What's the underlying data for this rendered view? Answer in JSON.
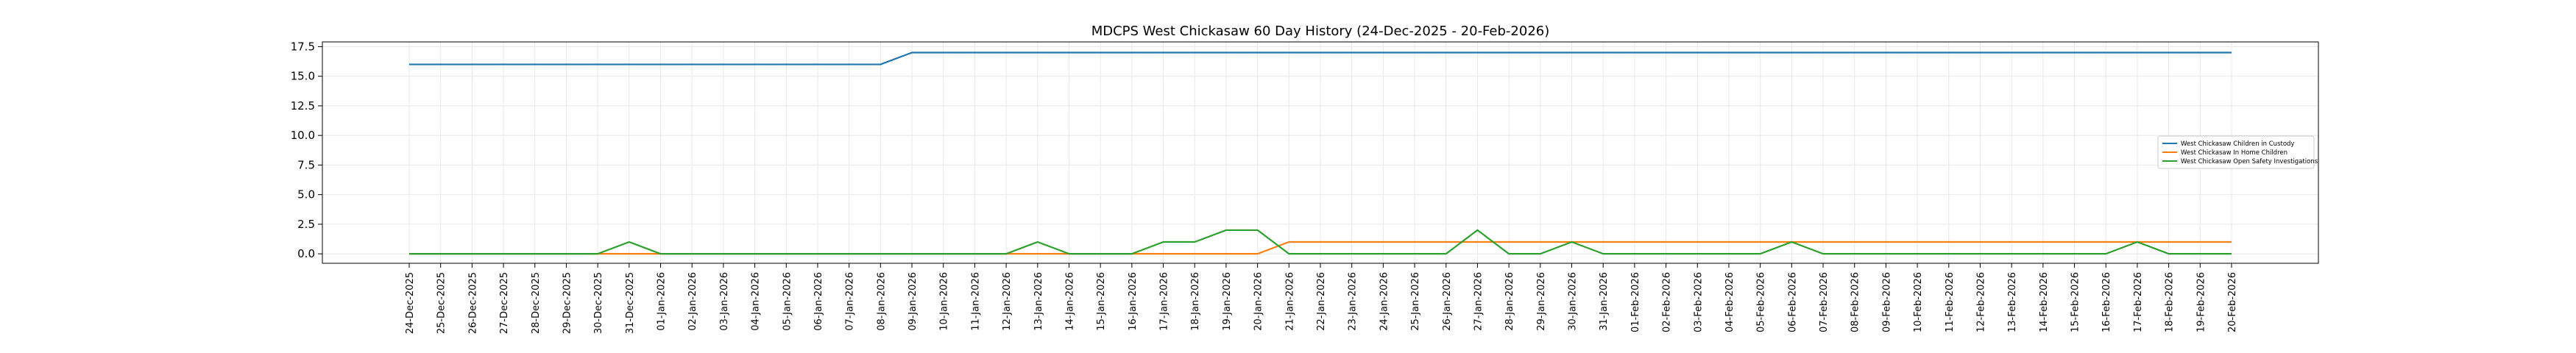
{
  "chart_data": {
    "type": "line",
    "title": "MDCPS West Chickasaw 60 Day History (24-Dec-2025 - 20-Feb-2026)",
    "xlabel": "",
    "ylabel": "",
    "ylim": [
      -0.8,
      17.9
    ],
    "yticks": [
      0.0,
      2.5,
      5.0,
      7.5,
      10.0,
      12.5,
      15.0,
      17.5
    ],
    "ytick_labels": [
      "0.0",
      "2.5",
      "5.0",
      "7.5",
      "10.0",
      "12.5",
      "15.0",
      "17.5"
    ],
    "grid": true,
    "legend_position": "right",
    "categories": [
      "24-Dec-2025",
      "25-Dec-2025",
      "26-Dec-2025",
      "27-Dec-2025",
      "28-Dec-2025",
      "29-Dec-2025",
      "30-Dec-2025",
      "31-Dec-2025",
      "01-Jan-2026",
      "02-Jan-2026",
      "03-Jan-2026",
      "04-Jan-2026",
      "05-Jan-2026",
      "06-Jan-2026",
      "07-Jan-2026",
      "08-Jan-2026",
      "09-Jan-2026",
      "10-Jan-2026",
      "11-Jan-2026",
      "12-Jan-2026",
      "13-Jan-2026",
      "14-Jan-2026",
      "15-Jan-2026",
      "16-Jan-2026",
      "17-Jan-2026",
      "18-Jan-2026",
      "19-Jan-2026",
      "20-Jan-2026",
      "21-Jan-2026",
      "22-Jan-2026",
      "23-Jan-2026",
      "24-Jan-2026",
      "25-Jan-2026",
      "26-Jan-2026",
      "27-Jan-2026",
      "28-Jan-2026",
      "29-Jan-2026",
      "30-Jan-2026",
      "31-Jan-2026",
      "01-Feb-2026",
      "02-Feb-2026",
      "03-Feb-2026",
      "04-Feb-2026",
      "05-Feb-2026",
      "06-Feb-2026",
      "07-Feb-2026",
      "08-Feb-2026",
      "09-Feb-2026",
      "10-Feb-2026",
      "11-Feb-2026",
      "12-Feb-2026",
      "13-Feb-2026",
      "14-Feb-2026",
      "15-Feb-2026",
      "16-Feb-2026",
      "17-Feb-2026",
      "18-Feb-2026",
      "19-Feb-2026",
      "20-Feb-2026"
    ],
    "series": [
      {
        "name": "West Chickasaw Children in Custody",
        "color": "#1f77b4",
        "values": [
          16,
          16,
          16,
          16,
          16,
          16,
          16,
          16,
          16,
          16,
          16,
          16,
          16,
          16,
          16,
          16,
          17,
          17,
          17,
          17,
          17,
          17,
          17,
          17,
          17,
          17,
          17,
          17,
          17,
          17,
          17,
          17,
          17,
          17,
          17,
          17,
          17,
          17,
          17,
          17,
          17,
          17,
          17,
          17,
          17,
          17,
          17,
          17,
          17,
          17,
          17,
          17,
          17,
          17,
          17,
          17,
          17,
          17,
          17
        ]
      },
      {
        "name": "West Chickasaw In Home Children",
        "color": "#ff7f0e",
        "values": [
          0,
          0,
          0,
          0,
          0,
          0,
          0,
          0,
          0,
          0,
          0,
          0,
          0,
          0,
          0,
          0,
          0,
          0,
          0,
          0,
          0,
          0,
          0,
          0,
          0,
          0,
          0,
          0,
          1,
          1,
          1,
          1,
          1,
          1,
          1,
          1,
          1,
          1,
          1,
          1,
          1,
          1,
          1,
          1,
          1,
          1,
          1,
          1,
          1,
          1,
          1,
          1,
          1,
          1,
          1,
          1,
          1,
          1,
          1
        ]
      },
      {
        "name": "West Chickasaw Open Safety Investigations",
        "color": "#2ca02c",
        "values": [
          0,
          0,
          0,
          0,
          0,
          0,
          0,
          1,
          0,
          0,
          0,
          0,
          0,
          0,
          0,
          0,
          0,
          0,
          0,
          0,
          1,
          0,
          0,
          0,
          1,
          1,
          2,
          2,
          0,
          0,
          0,
          0,
          0,
          0,
          2,
          0,
          0,
          1,
          0,
          0,
          0,
          0,
          0,
          0,
          1,
          0,
          0,
          0,
          0,
          0,
          0,
          0,
          0,
          0,
          0,
          1,
          0,
          0,
          0
        ]
      }
    ]
  }
}
